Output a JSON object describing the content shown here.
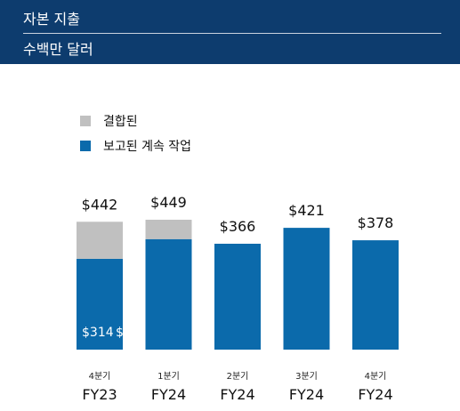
{
  "header": {
    "title": "자본 지출",
    "subtitle": "수백만 달러"
  },
  "colors": {
    "header_bg": "#0d3c6e",
    "combined": "#c0c0c0",
    "reported": "#0b6aab"
  },
  "chart_data": {
    "type": "bar",
    "stacked": true,
    "categories": [
      {
        "quarter": "4분기",
        "year": "FY23"
      },
      {
        "quarter": "1분기",
        "year": "FY24"
      },
      {
        "quarter": "2분기",
        "year": "FY24"
      },
      {
        "quarter": "3분기",
        "year": "FY24"
      },
      {
        "quarter": "4분기",
        "year": "FY24"
      }
    ],
    "series": [
      {
        "name": "보고된 계속 작업",
        "color": "#0b6aab",
        "values": [
          314,
          382,
          366,
          421,
          378
        ]
      },
      {
        "name": "결합된",
        "color": "#c0c0c0",
        "values": [
          128,
          67,
          0,
          0,
          0
        ]
      }
    ],
    "total_labels": [
      "$442",
      "$449",
      "$366",
      "$421",
      "$378"
    ],
    "inner_labels": [
      "$314",
      "$"
    ],
    "legend": {
      "position": "top-left",
      "entries": [
        "결합된",
        "보고된 계속 작업"
      ]
    },
    "ylim": [
      0,
      449
    ],
    "grid": false,
    "xlabel": "",
    "ylabel": ""
  }
}
